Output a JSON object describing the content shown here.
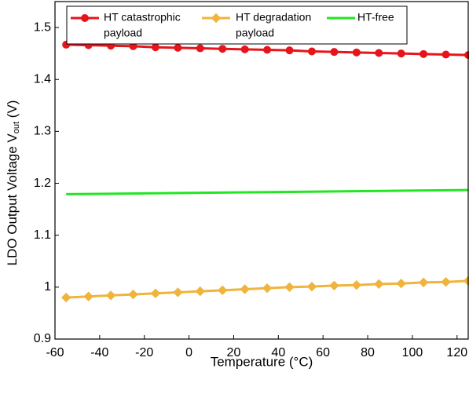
{
  "chart_data": {
    "type": "line",
    "xlabel": "Temperature (°C)",
    "ylabel_main": "LDO Output Voltage  V",
    "ylabel_sub": "out",
    "ylabel_unit": " (V)",
    "xlim": [
      -60,
      125
    ],
    "ylim": [
      0.9,
      1.55
    ],
    "xticks": [
      -60,
      -40,
      -20,
      0,
      20,
      40,
      60,
      80,
      100,
      120
    ],
    "xtick_labels": [
      "-60",
      "-40",
      "-20",
      "0",
      "20",
      "40",
      "60",
      "80",
      "100",
      "120"
    ],
    "yticks": [
      0.9,
      1,
      1.1,
      1.2,
      1.3,
      1.4,
      1.5
    ],
    "ytick_labels": [
      "0.9",
      "1",
      "1.1",
      "1.2",
      "1.3",
      "1.4",
      "1.5"
    ],
    "grid": false,
    "legend_position": "top",
    "series": [
      {
        "name_line1": "HT catastrophic",
        "name_line2": "payload",
        "color": "#e8141b",
        "marker": "circle",
        "x": [
          -55,
          -45,
          -35,
          -25,
          -15,
          -5,
          5,
          15,
          25,
          35,
          45,
          55,
          65,
          75,
          85,
          95,
          105,
          115,
          125
        ],
        "values": [
          1.467,
          1.466,
          1.465,
          1.464,
          1.462,
          1.461,
          1.46,
          1.459,
          1.458,
          1.457,
          1.456,
          1.454,
          1.453,
          1.452,
          1.451,
          1.45,
          1.449,
          1.448,
          1.447
        ]
      },
      {
        "name_line1": "HT degradation",
        "name_line2": "payload",
        "color": "#f0b43c",
        "marker": "diamond",
        "x": [
          -55,
          -45,
          -35,
          -25,
          -15,
          -5,
          5,
          15,
          25,
          35,
          45,
          55,
          65,
          75,
          85,
          95,
          105,
          115,
          125
        ],
        "values": [
          0.98,
          0.982,
          0.984,
          0.986,
          0.988,
          0.99,
          0.992,
          0.994,
          0.996,
          0.998,
          1.0,
          1.001,
          1.003,
          1.004,
          1.006,
          1.007,
          1.009,
          1.01,
          1.012
        ]
      },
      {
        "name_line1": "HT-free",
        "name_line2": "",
        "color": "#22e622",
        "marker": "none",
        "x": [
          -55,
          125
        ],
        "values": [
          1.179,
          1.187
        ]
      }
    ]
  }
}
